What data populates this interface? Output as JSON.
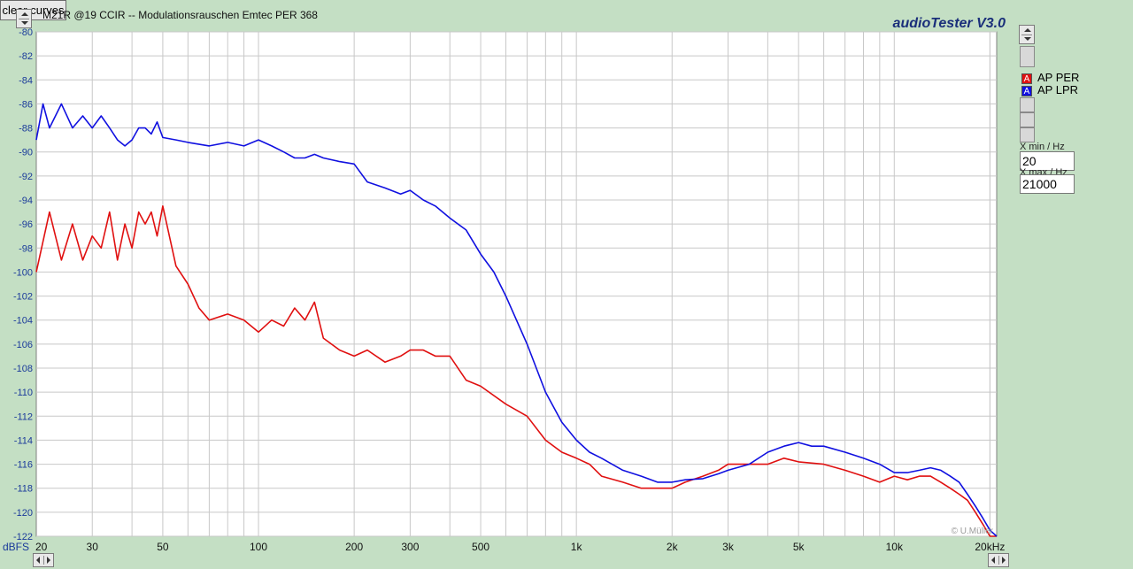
{
  "window": {
    "title": "M21R @19 CCIR -- Modulationsrauschen Emtec PER 368",
    "brand": "audioTester  V3.0",
    "clear_label": "clear curves",
    "copyright": "© U.Müller"
  },
  "controls": {
    "xmin_label": "X min / Hz",
    "xmin_value": "20",
    "xmax_label": "X max / Hz",
    "xmax_value": "21000"
  },
  "chart_data": {
    "type": "line",
    "title": "M21R @19 CCIR -- Modulationsrauschen Emtec PER 368",
    "ylabel": "dBFS",
    "xlabel": "",
    "x_scale": "log",
    "xlim": [
      20,
      21000
    ],
    "ylim": [
      -122,
      -80
    ],
    "grid": true,
    "legend": "right",
    "x_ticks": [
      {
        "value": 20,
        "label": "20"
      },
      {
        "value": 30,
        "label": "30"
      },
      {
        "value": 50,
        "label": "50"
      },
      {
        "value": 100,
        "label": "100"
      },
      {
        "value": 200,
        "label": "200"
      },
      {
        "value": 300,
        "label": "300"
      },
      {
        "value": 500,
        "label": "500"
      },
      {
        "value": 1000,
        "label": "1k"
      },
      {
        "value": 2000,
        "label": "2k"
      },
      {
        "value": 3000,
        "label": "3k"
      },
      {
        "value": 5000,
        "label": "5k"
      },
      {
        "value": 10000,
        "label": "10k"
      },
      {
        "value": 20000,
        "label": "20kHz"
      }
    ],
    "y_ticks": [
      -80,
      -82,
      -84,
      -86,
      -88,
      -90,
      -92,
      -94,
      -96,
      -98,
      -100,
      -102,
      -104,
      -106,
      -108,
      -110,
      -112,
      -114,
      -116,
      -118,
      -120,
      -122
    ],
    "series": [
      {
        "name": "AP PER",
        "legend_marker": "A",
        "color": "#e01010",
        "x": [
          20,
          22,
          24,
          26,
          28,
          30,
          32,
          34,
          36,
          38,
          40,
          42,
          44,
          46,
          48,
          50,
          55,
          60,
          65,
          70,
          80,
          90,
          100,
          110,
          120,
          130,
          140,
          150,
          160,
          180,
          200,
          220,
          250,
          280,
          300,
          330,
          360,
          400,
          450,
          500,
          600,
          700,
          800,
          900,
          1000,
          1100,
          1200,
          1400,
          1600,
          1800,
          2000,
          2200,
          2500,
          2800,
          3000,
          3500,
          4000,
          4500,
          5000,
          6000,
          7000,
          8000,
          9000,
          10000,
          11000,
          12000,
          13000,
          14000,
          15000,
          16000,
          17000,
          18000,
          19000,
          20000,
          21000
        ],
        "y": [
          -100,
          -95,
          -99,
          -96,
          -99,
          -97,
          -98,
          -95,
          -99,
          -96,
          -98,
          -95,
          -96,
          -95,
          -97,
          -94.5,
          -99.5,
          -101,
          -103,
          -104,
          -103.5,
          -104,
          -105,
          -104,
          -104.5,
          -103,
          -104,
          -102.5,
          -105.5,
          -106.5,
          -107,
          -106.5,
          -107.5,
          -107,
          -106.5,
          -106.5,
          -107,
          -107,
          -109,
          -109.5,
          -111,
          -112,
          -114,
          -115,
          -115.5,
          -116,
          -117,
          -117.5,
          -118,
          -118,
          -118,
          -117.5,
          -117,
          -116.5,
          -116,
          -116,
          -116,
          -115.5,
          -115.8,
          -116,
          -116.5,
          -117,
          -117.5,
          -117,
          -117.3,
          -117,
          -117,
          -117.5,
          -118,
          -118.5,
          -119,
          -120,
          -121,
          -122,
          -122
        ]
      },
      {
        "name": "AP LPR",
        "legend_marker": "A",
        "color": "#1010e0",
        "x": [
          20,
          21,
          22,
          24,
          26,
          28,
          30,
          32,
          34,
          36,
          38,
          40,
          42,
          44,
          46,
          48,
          50,
          55,
          60,
          70,
          80,
          90,
          100,
          110,
          120,
          130,
          140,
          150,
          160,
          180,
          200,
          220,
          250,
          280,
          300,
          330,
          360,
          400,
          450,
          500,
          550,
          600,
          700,
          800,
          900,
          1000,
          1100,
          1200,
          1400,
          1600,
          1800,
          2000,
          2200,
          2500,
          2800,
          3000,
          3500,
          4000,
          4500,
          5000,
          5500,
          6000,
          7000,
          8000,
          9000,
          10000,
          11000,
          12000,
          13000,
          14000,
          15000,
          16000,
          17000,
          18000,
          19000,
          20000,
          21000
        ],
        "y": [
          -89,
          -86,
          -88,
          -86,
          -88,
          -87,
          -88,
          -87,
          -88,
          -89,
          -89.5,
          -89,
          -88,
          -88,
          -88.5,
          -87.5,
          -88.8,
          -89,
          -89.2,
          -89.5,
          -89.2,
          -89.5,
          -89,
          -89.5,
          -90,
          -90.5,
          -90.5,
          -90.2,
          -90.5,
          -90.8,
          -91,
          -92.5,
          -93,
          -93.5,
          -93.2,
          -94,
          -94.5,
          -95.5,
          -96.5,
          -98.5,
          -100,
          -102,
          -106,
          -110,
          -112.5,
          -114,
          -115,
          -115.5,
          -116.5,
          -117,
          -117.5,
          -117.5,
          -117.3,
          -117.2,
          -116.8,
          -116.5,
          -116,
          -115,
          -114.5,
          -114.2,
          -114.5,
          -114.5,
          -115,
          -115.5,
          -116,
          -116.7,
          -116.7,
          -116.5,
          -116.3,
          -116.5,
          -117,
          -117.5,
          -118.5,
          -119.5,
          -120.5,
          -121.5,
          -122
        ]
      }
    ]
  }
}
